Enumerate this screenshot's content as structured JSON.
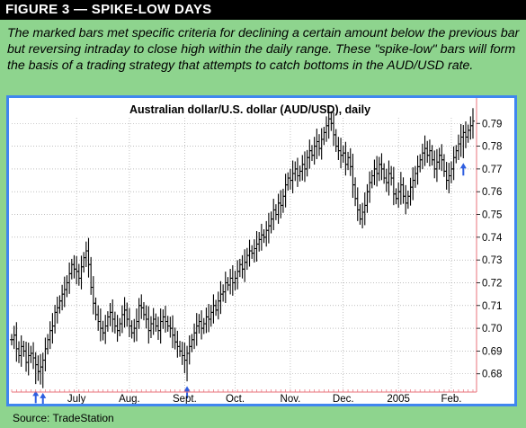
{
  "header": {
    "title": "FIGURE 3 — SPIKE-LOW DAYS"
  },
  "caption": {
    "text": "The marked bars met specific criteria for declining a certain amount below the previous bar but reversing intraday to close high within the daily range. These \"spike-low\" bars will form the basis of a trading strategy that attempts to catch bottoms in the AUD/USD rate."
  },
  "source": {
    "text": "Source: TradeStation"
  },
  "colors": {
    "background": "#8ed48e",
    "frame": "#3f86ef",
    "bars": "#000000",
    "arrows": "#2f5fe0",
    "today_line": "#e8707a"
  },
  "chart_data": {
    "type": "ohlc",
    "title": "Australian dollar/U.S. dollar (AUD/USD), daily",
    "xlabel": "",
    "ylabel": "",
    "ylim": [
      0.672,
      0.798
    ],
    "yticks": [
      "0.68",
      "0.69",
      "0.70",
      "0.71",
      "0.72",
      "0.73",
      "0.74",
      "0.75",
      "0.76",
      "0.77",
      "0.78",
      "0.79"
    ],
    "grid": "dotted",
    "month_labels": [
      {
        "label": "July",
        "day": 27
      },
      {
        "label": "Aug.",
        "day": 49
      },
      {
        "label": "Sept.",
        "day": 72
      },
      {
        "label": "Oct.",
        "day": 93
      },
      {
        "label": "Nov.",
        "day": 116
      },
      {
        "label": "Dec.",
        "day": 138
      },
      {
        "label": "2005",
        "day": 161
      },
      {
        "label": "Feb.",
        "day": 183
      }
    ],
    "spike_low_days": [
      10,
      13,
      73,
      188
    ],
    "closes": [
      0.695,
      0.697,
      0.691,
      0.688,
      0.692,
      0.69,
      0.685,
      0.688,
      0.689,
      0.687,
      0.684,
      0.681,
      0.683,
      0.686,
      0.691,
      0.695,
      0.699,
      0.701,
      0.707,
      0.709,
      0.712,
      0.715,
      0.717,
      0.72,
      0.724,
      0.728,
      0.726,
      0.725,
      0.722,
      0.727,
      0.731,
      0.734,
      0.728,
      0.718,
      0.711,
      0.706,
      0.703,
      0.7,
      0.698,
      0.701,
      0.705,
      0.707,
      0.704,
      0.701,
      0.699,
      0.702,
      0.706,
      0.708,
      0.704,
      0.701,
      0.698,
      0.7,
      0.703,
      0.71,
      0.709,
      0.706,
      0.704,
      0.699,
      0.702,
      0.704,
      0.701,
      0.699,
      0.703,
      0.705,
      0.703,
      0.701,
      0.7,
      0.697,
      0.694,
      0.692,
      0.69,
      0.688,
      0.686,
      0.689,
      0.692,
      0.695,
      0.698,
      0.701,
      0.703,
      0.7,
      0.702,
      0.705,
      0.704,
      0.707,
      0.71,
      0.708,
      0.712,
      0.715,
      0.716,
      0.72,
      0.719,
      0.722,
      0.72,
      0.722,
      0.725,
      0.728,
      0.726,
      0.729,
      0.732,
      0.734,
      0.733,
      0.735,
      0.737,
      0.739,
      0.741,
      0.74,
      0.743,
      0.745,
      0.748,
      0.752,
      0.75,
      0.755,
      0.754,
      0.758,
      0.763,
      0.766,
      0.765,
      0.768,
      0.77,
      0.767,
      0.769,
      0.772,
      0.77,
      0.775,
      0.778,
      0.776,
      0.78,
      0.782,
      0.779,
      0.783,
      0.786,
      0.789,
      0.792,
      0.79,
      0.785,
      0.78,
      0.778,
      0.776,
      0.777,
      0.772,
      0.775,
      0.771,
      0.763,
      0.757,
      0.752,
      0.748,
      0.751,
      0.754,
      0.76,
      0.764,
      0.767,
      0.77,
      0.768,
      0.772,
      0.77,
      0.766,
      0.764,
      0.768,
      0.766,
      0.759,
      0.757,
      0.76,
      0.763,
      0.758,
      0.755,
      0.758,
      0.762,
      0.765,
      0.768,
      0.771,
      0.774,
      0.777,
      0.779,
      0.776,
      0.778,
      0.774,
      0.77,
      0.773,
      0.776,
      0.774,
      0.769,
      0.765,
      0.767,
      0.77,
      0.775,
      0.778,
      0.781,
      0.784,
      0.786,
      0.784,
      0.787,
      0.789,
      0.791
    ]
  }
}
